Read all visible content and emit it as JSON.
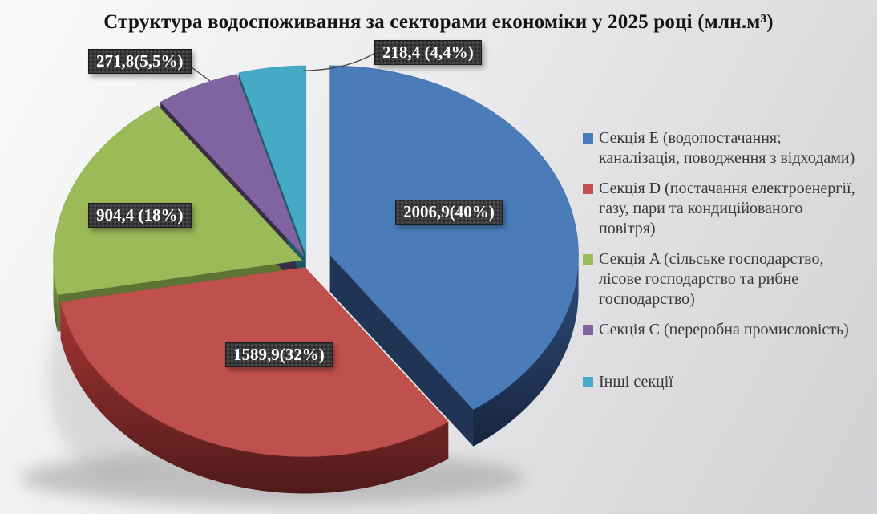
{
  "title": "Структура водоспоживання за секторами економіки у 2025 році (млн.м³)",
  "chart_data": {
    "type": "pie",
    "style": "3d-exploded",
    "title": "Структура водоспоживання за секторами економіки у 2025 році (млн.м³)",
    "unit": "млн.м³",
    "legend_position": "right",
    "grid": false,
    "series": [
      {
        "id": "section-e",
        "label": "Секція E (водопостачання; каналізація, поводження з відходами)",
        "value": 2006.9,
        "percent": 40,
        "data_label": "2006,9(40%)",
        "color": "#4a7cba",
        "shade_color": "#203455"
      },
      {
        "id": "section-d",
        "label": "Секція D (постачання електроенергії, газу, пари та кондиційованого повітря)",
        "value": 1589.9,
        "percent": 32,
        "data_label": "1589,9(32%)",
        "color": "#c0504d",
        "shade_color": "#6e2423"
      },
      {
        "id": "section-a",
        "label": "Секція A (сільське господарство, лісове господарство та рибне господарство)",
        "value": 904.4,
        "percent": 18,
        "data_label": "904,4 (18%)",
        "color": "#9bbb59",
        "shade_color": "#5e7434"
      },
      {
        "id": "section-c",
        "label": "Секція C (переробна промисловість)",
        "value": 271.8,
        "percent": 5.5,
        "data_label": "271,8(5,5%)",
        "color": "#8064a2",
        "shade_color": "#3a2c47"
      },
      {
        "id": "other",
        "label": "Інші секції",
        "value": 218.4,
        "percent": 4.4,
        "data_label": "218,4 (4,4%)",
        "color": "#45aac6",
        "shade_color": "#1d5a64"
      }
    ]
  }
}
